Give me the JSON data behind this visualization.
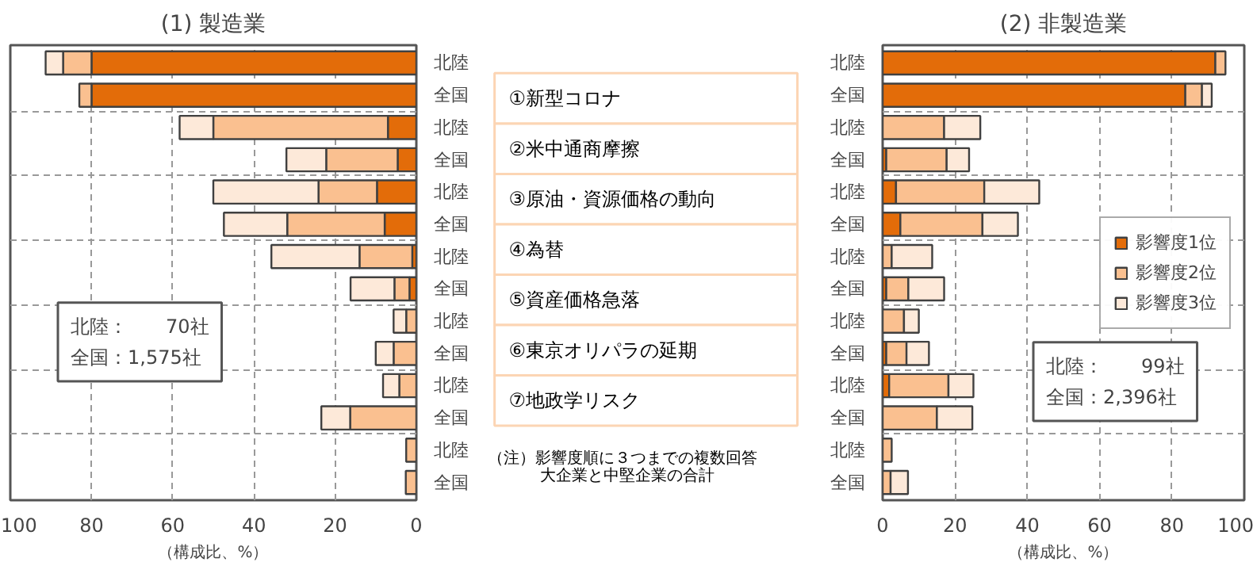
{
  "chart_data": [
    {
      "type": "bar",
      "title": "(1) 製造業",
      "orientation": "horizontal",
      "stacked": true,
      "xlabel": "（構成比、%）",
      "categories": [
        "北陸",
        "全国",
        "北陸",
        "全国",
        "北陸",
        "全国",
        "北陸",
        "全国",
        "北陸",
        "全国",
        "北陸",
        "全国",
        "北陸",
        "全国"
      ],
      "series": [
        {
          "color": "#e36c09",
          "values": [
            80,
            80,
            7,
            4.6,
            9.7,
            7.8,
            1,
            1.7,
            0,
            0,
            0,
            null,
            0,
            null
          ]
        },
        {
          "color": "#fac090",
          "values": [
            7,
            3,
            43,
            17.6,
            14.4,
            24,
            13,
            3.7,
            2.5,
            5.6,
            4.2,
            16.3,
            2.5,
            2.6
          ]
        },
        {
          "color": "#fde9d9",
          "values": [
            4.3,
            0,
            8.3,
            9.8,
            25.9,
            15.6,
            21.7,
            10.8,
            3.1,
            4.4,
            4,
            7.1,
            0,
            0
          ]
        }
      ],
      "xlim": [
        100,
        0
      ],
      "xticks": [
        0,
        20,
        40,
        60,
        80,
        100
      ],
      "grid": true,
      "legend": false,
      "annotations": [
        "北陸：　　70社",
        "全国：1,575社"
      ]
    },
    {
      "type": "other",
      "annotations": [
        "①新型コロナ",
        "②米中通商摩擦",
        "③原油・資源価格の動向",
        "④為替",
        "⑤資産価格急落",
        "⑥東京オリパラの延期",
        "⑦地政学リスク",
        "（注）影響度順に３つまでの複数回答",
        "大企業と中堅企業の合計"
      ]
    },
    {
      "type": "bar",
      "title": "(2) 非製造業",
      "orientation": "horizontal",
      "stacked": true,
      "xlabel": "（構成比、%）",
      "categories": [
        "北陸",
        "全国",
        "北陸",
        "全国",
        "北陸",
        "全国",
        "北陸",
        "全国",
        "北陸",
        "全国",
        "北陸",
        "全国",
        "北陸",
        "全国"
      ],
      "series": [
        {
          "name": "影響度1位",
          "color": "#e36c09",
          "values": [
            92,
            83.7,
            0,
            1,
            3.7,
            4.9,
            0,
            1,
            0,
            1,
            1.8,
            null,
            0,
            0
          ]
        },
        {
          "name": "影響度2位",
          "color": "#fac090",
          "values": [
            2.8,
            4.6,
            17,
            16.7,
            24.4,
            22.7,
            2.5,
            6.1,
            5.9,
            5.6,
            16.4,
            15,
            2.5,
            2.2
          ]
        },
        {
          "name": "影響度3位",
          "color": "#fde9d9",
          "values": [
            0,
            2.7,
            10,
            6.2,
            15.2,
            9.8,
            11.2,
            9.9,
            4.1,
            6.2,
            6.9,
            9.8,
            0,
            4.8
          ]
        }
      ],
      "xlim": [
        0,
        100
      ],
      "xticks": [
        0,
        20,
        40,
        60,
        80,
        100
      ],
      "grid": true,
      "legend": "right",
      "annotations": [
        "北陸：　　99社",
        "全国：2,396社"
      ]
    }
  ]
}
